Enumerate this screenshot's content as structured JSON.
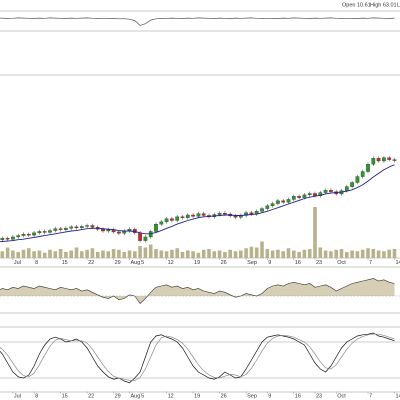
{
  "header": [
    "Open 10.61",
    "High 63.01",
    "L"
  ],
  "chart_data": [
    {
      "type": "line",
      "ylim": [
        0,
        100
      ],
      "series": [
        {
          "color": "#555555",
          "values": [
            65,
            66,
            64,
            65,
            67,
            66,
            65,
            64,
            66,
            65,
            67,
            66,
            65,
            64,
            66,
            65,
            66,
            67,
            65,
            64,
            63,
            65,
            64,
            62,
            63,
            60,
            52,
            25,
            35,
            55,
            62,
            64,
            65,
            66,
            65,
            64,
            66,
            65,
            67,
            66,
            65,
            64,
            66,
            65,
            64,
            66,
            65,
            66,
            67,
            65,
            64,
            63,
            65,
            64,
            66,
            65,
            67,
            66,
            65,
            64,
            66,
            65,
            66,
            67,
            65,
            64,
            63,
            65,
            64,
            66,
            65,
            67,
            66,
            65,
            64,
            66
          ]
        }
      ]
    },
    {
      "type": "candlestick",
      "ylim": [
        20,
        60
      ],
      "volume_ylim": [
        0,
        100
      ],
      "up_color": "#2e9a2e",
      "down_color": "#cc2a2a",
      "ma_color": "#22228c",
      "volume_color": "#b8b28c",
      "xticks": [
        {
          "value": 3,
          "label": "Jul"
        },
        {
          "value": 7,
          "label": "8"
        },
        {
          "value": 12,
          "label": "15"
        },
        {
          "value": 17,
          "label": "22"
        },
        {
          "value": 22,
          "label": "29"
        },
        {
          "value": 25,
          "label": "Aug"
        },
        {
          "value": 27,
          "label": "5"
        },
        {
          "value": 32,
          "label": "12"
        },
        {
          "value": 37,
          "label": "19"
        },
        {
          "value": 42,
          "label": "26"
        },
        {
          "value": 47,
          "label": "Sep"
        },
        {
          "value": 51,
          "label": "9"
        },
        {
          "value": 56,
          "label": "16"
        },
        {
          "value": 60,
          "label": "23"
        },
        {
          "value": 64,
          "label": "Oct"
        },
        {
          "value": 70,
          "label": "7"
        },
        {
          "value": 75,
          "label": "14"
        }
      ],
      "ohlc": [
        [
          23.8,
          24.4,
          23.4,
          24.0
        ],
        [
          24.0,
          24.7,
          23.6,
          24.3
        ],
        [
          24.3,
          24.7,
          23.7,
          24.1
        ],
        [
          24.1,
          25.0,
          23.7,
          24.6
        ],
        [
          24.6,
          25.3,
          24.2,
          24.9
        ],
        [
          24.9,
          25.6,
          24.5,
          25.2
        ],
        [
          25.2,
          25.6,
          24.6,
          25.0
        ],
        [
          25.0,
          25.9,
          24.6,
          25.5
        ],
        [
          25.5,
          26.2,
          25.1,
          25.8
        ],
        [
          25.8,
          26.2,
          25.2,
          25.6
        ],
        [
          25.6,
          26.4,
          25.2,
          26.0
        ],
        [
          26.0,
          26.8,
          25.6,
          26.4
        ],
        [
          26.4,
          26.8,
          25.8,
          26.2
        ],
        [
          26.2,
          26.9,
          25.8,
          26.5
        ],
        [
          26.5,
          27.2,
          26.1,
          26.8
        ],
        [
          26.8,
          27.2,
          26.2,
          26.6
        ],
        [
          26.6,
          27.3,
          26.2,
          26.9
        ],
        [
          26.9,
          27.5,
          26.5,
          27.1
        ],
        [
          27.1,
          27.5,
          26.3,
          26.7
        ],
        [
          26.7,
          27.1,
          25.9,
          26.3
        ],
        [
          26.3,
          26.7,
          25.5,
          25.9
        ],
        [
          25.9,
          26.6,
          25.5,
          26.2
        ],
        [
          26.2,
          26.6,
          25.3,
          25.7
        ],
        [
          25.7,
          26.1,
          25.0,
          25.4
        ],
        [
          25.4,
          26.3,
          25.0,
          25.9
        ],
        [
          25.9,
          26.7,
          25.5,
          26.3
        ],
        [
          26.3,
          26.7,
          25.1,
          25.5
        ],
        [
          25.5,
          25.9,
          23.4,
          23.8
        ],
        [
          23.8,
          25.0,
          23.4,
          24.6
        ],
        [
          24.6,
          26.2,
          24.2,
          25.8
        ],
        [
          25.8,
          27.8,
          25.4,
          27.4
        ],
        [
          27.4,
          28.3,
          27.0,
          27.9
        ],
        [
          27.9,
          29.0,
          27.5,
          28.6
        ],
        [
          28.6,
          29.0,
          27.8,
          28.2
        ],
        [
          28.2,
          29.4,
          27.8,
          29.0
        ],
        [
          29.0,
          29.4,
          28.4,
          28.8
        ],
        [
          28.8,
          29.8,
          28.4,
          29.4
        ],
        [
          29.4,
          29.8,
          28.7,
          29.1
        ],
        [
          29.1,
          30.1,
          28.7,
          29.7
        ],
        [
          29.7,
          30.1,
          28.9,
          29.3
        ],
        [
          29.3,
          29.7,
          28.6,
          29.0
        ],
        [
          29.0,
          29.9,
          28.6,
          29.5
        ],
        [
          29.5,
          30.2,
          29.1,
          29.8
        ],
        [
          29.8,
          30.2,
          29.2,
          29.6
        ],
        [
          29.6,
          30.0,
          28.8,
          29.2
        ],
        [
          29.2,
          29.6,
          28.5,
          28.9
        ],
        [
          28.9,
          29.7,
          28.5,
          29.3
        ],
        [
          29.3,
          30.3,
          28.9,
          29.9
        ],
        [
          29.9,
          30.3,
          29.2,
          29.6
        ],
        [
          29.6,
          30.6,
          29.2,
          30.2
        ],
        [
          30.2,
          31.2,
          29.8,
          30.8
        ],
        [
          30.8,
          31.8,
          30.4,
          31.4
        ],
        [
          31.4,
          32.3,
          31.0,
          31.9
        ],
        [
          31.9,
          32.9,
          31.5,
          32.5
        ],
        [
          32.5,
          32.9,
          31.8,
          32.2
        ],
        [
          32.2,
          33.2,
          31.8,
          32.8
        ],
        [
          32.8,
          33.9,
          32.4,
          33.5
        ],
        [
          33.5,
          33.9,
          32.8,
          33.2
        ],
        [
          33.2,
          34.2,
          32.8,
          33.8
        ],
        [
          33.8,
          34.5,
          33.4,
          34.1
        ],
        [
          34.1,
          34.5,
          33.2,
          33.6
        ],
        [
          33.6,
          34.7,
          33.2,
          34.3
        ],
        [
          34.3,
          35.2,
          33.9,
          34.8
        ],
        [
          34.8,
          35.2,
          34.1,
          34.5
        ],
        [
          34.5,
          34.9,
          33.6,
          34.0
        ],
        [
          34.0,
          35.1,
          33.6,
          34.7
        ],
        [
          34.7,
          36.0,
          34.3,
          35.6
        ],
        [
          35.6,
          36.9,
          35.2,
          36.5
        ],
        [
          36.5,
          38.2,
          36.1,
          37.8
        ],
        [
          37.8,
          39.3,
          37.4,
          38.9
        ],
        [
          38.9,
          40.9,
          38.5,
          40.5
        ],
        [
          40.5,
          42.2,
          40.1,
          41.8
        ],
        [
          41.8,
          42.2,
          40.8,
          41.2
        ],
        [
          41.2,
          42.3,
          40.8,
          41.9
        ],
        [
          41.9,
          42.3,
          41.1,
          41.5
        ],
        [
          41.5,
          41.9,
          40.9,
          41.3
        ]
      ],
      "ma": [
        23.5,
        23.6,
        23.7,
        23.8,
        24.0,
        24.1,
        24.3,
        24.5,
        24.7,
        24.9,
        25.1,
        25.3,
        25.5,
        25.7,
        25.9,
        26.0,
        26.2,
        26.4,
        26.5,
        26.5,
        26.4,
        26.3,
        26.2,
        26.0,
        25.9,
        25.9,
        25.8,
        25.5,
        25.3,
        25.3,
        25.6,
        26.0,
        26.5,
        26.9,
        27.4,
        27.8,
        28.2,
        28.5,
        28.8,
        29.0,
        29.1,
        29.2,
        29.3,
        29.4,
        29.4,
        29.3,
        29.3,
        29.4,
        29.5,
        29.6,
        29.9,
        30.2,
        30.6,
        31.0,
        31.4,
        31.8,
        32.2,
        32.6,
        33.0,
        33.3,
        33.5,
        33.7,
        34.0,
        34.2,
        34.3,
        34.4,
        34.6,
        34.9,
        35.4,
        36.0,
        36.8,
        37.7,
        38.5,
        39.3,
        39.9,
        40.4
      ],
      "volume": [
        12,
        9,
        14,
        10,
        8,
        11,
        13,
        9,
        10,
        7,
        11,
        9,
        12,
        8,
        10,
        14,
        9,
        11,
        13,
        8,
        10,
        9,
        12,
        11,
        8,
        10,
        9,
        16,
        14,
        18,
        12,
        10,
        9,
        11,
        13,
        8,
        10,
        9,
        7,
        11,
        12,
        9,
        10,
        8,
        11,
        9,
        10,
        13,
        15,
        14,
        22,
        12,
        10,
        11,
        9,
        13,
        10,
        8,
        11,
        12,
        68,
        14,
        10,
        9,
        11,
        12,
        8,
        10,
        9,
        11,
        13,
        12,
        10,
        9,
        11,
        12
      ]
    },
    {
      "type": "area",
      "ylim": [
        -0.6,
        1.0
      ],
      "ref_lines": [
        0
      ],
      "color": "#333333",
      "fill": "#b5a878",
      "values": [
        0.2,
        0.3,
        0.25,
        0.35,
        0.3,
        0.4,
        0.35,
        0.3,
        0.4,
        0.35,
        0.3,
        0.25,
        0.35,
        0.3,
        0.25,
        0.3,
        0.2,
        0.25,
        0.15,
        0.05,
        -0.05,
        -0.1,
        0.0,
        -0.15,
        -0.1,
        0.05,
        0.0,
        -0.3,
        -0.1,
        0.15,
        0.35,
        0.4,
        0.45,
        0.35,
        0.4,
        0.3,
        0.35,
        0.25,
        0.3,
        0.2,
        0.15,
        0.1,
        0.2,
        0.15,
        0.05,
        -0.05,
        0.0,
        0.1,
        0.05,
        0.0,
        0.1,
        0.3,
        0.4,
        0.45,
        0.4,
        0.5,
        0.55,
        0.5,
        0.45,
        0.5,
        0.35,
        0.4,
        0.45,
        0.35,
        0.2,
        0.3,
        0.4,
        0.5,
        0.55,
        0.6,
        0.65,
        0.7,
        0.6,
        0.65,
        0.55,
        0.5
      ]
    },
    {
      "type": "line",
      "ylim": [
        0,
        100
      ],
      "ref_lines": [
        80,
        20
      ],
      "series": [
        {
          "color": "#111111",
          "values": [
            70,
            60,
            45,
            30,
            22,
            20,
            25,
            40,
            60,
            75,
            85,
            88,
            85,
            80,
            82,
            85,
            80,
            70,
            55,
            40,
            30,
            22,
            18,
            20,
            15,
            12,
            20,
            30,
            55,
            80,
            90,
            92,
            88,
            85,
            80,
            70,
            55,
            40,
            30,
            25,
            20,
            18,
            22,
            30,
            25,
            20,
            22,
            35,
            50,
            65,
            80,
            88,
            90,
            92,
            90,
            88,
            85,
            80,
            75,
            60,
            45,
            35,
            30,
            40,
            55,
            70,
            80,
            85,
            90,
            92,
            93,
            95,
            90,
            88,
            85,
            82
          ]
        },
        {
          "color": "#8a8a8a",
          "values": [
            75,
            68,
            58,
            45,
            32,
            24,
            22,
            28,
            42,
            58,
            73,
            83,
            86,
            84,
            82,
            82,
            82,
            78,
            68,
            55,
            42,
            31,
            23,
            20,
            18,
            16,
            16,
            21,
            35,
            55,
            75,
            87,
            90,
            88,
            84,
            78,
            68,
            55,
            42,
            32,
            25,
            21,
            20,
            23,
            26,
            25,
            22,
            26,
            36,
            50,
            65,
            78,
            86,
            90,
            91,
            90,
            88,
            84,
            80,
            72,
            60,
            47,
            37,
            35,
            42,
            55,
            68,
            78,
            85,
            89,
            92,
            93,
            93,
            91,
            88,
            85
          ]
        }
      ]
    }
  ]
}
